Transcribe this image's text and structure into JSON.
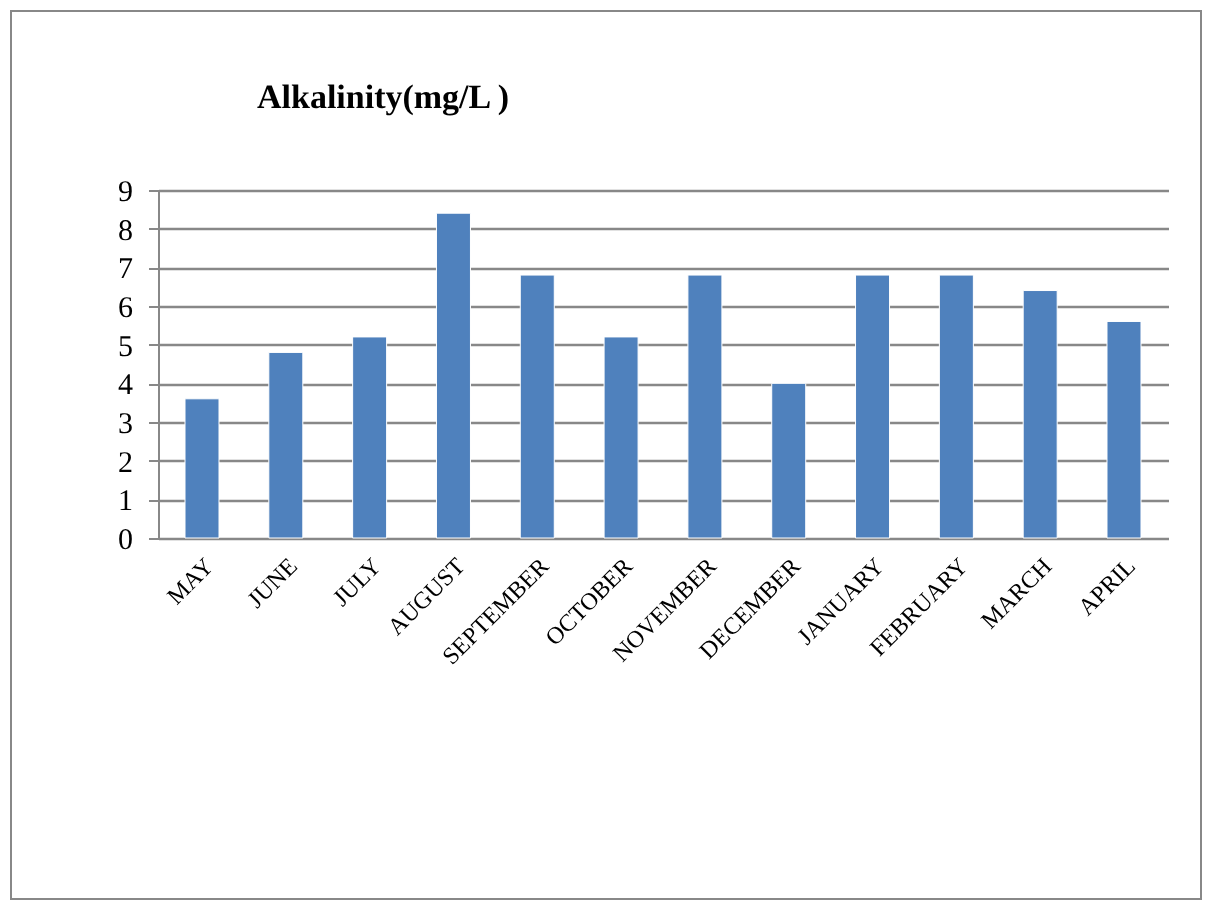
{
  "chart_data": {
    "type": "bar",
    "title": "Alkalinity(mg/L )",
    "categories": [
      "MAY",
      "JUNE",
      "JULY",
      "AUGUST",
      "SEPTEMBER",
      "OCTOBER",
      "NOVEMBER",
      "DECEMBER",
      "JANUARY",
      "FEBRUARY",
      "MARCH",
      "APRIL"
    ],
    "values": [
      3.6,
      4.8,
      5.2,
      8.4,
      6.8,
      5.2,
      6.8,
      4.0,
      6.8,
      6.8,
      6.4,
      5.6
    ],
    "color": "#4f81bd",
    "ylim": [
      0,
      9
    ],
    "yticks": [
      0,
      1,
      2,
      3,
      4,
      5,
      6,
      7,
      8,
      9
    ],
    "grid": "y"
  }
}
